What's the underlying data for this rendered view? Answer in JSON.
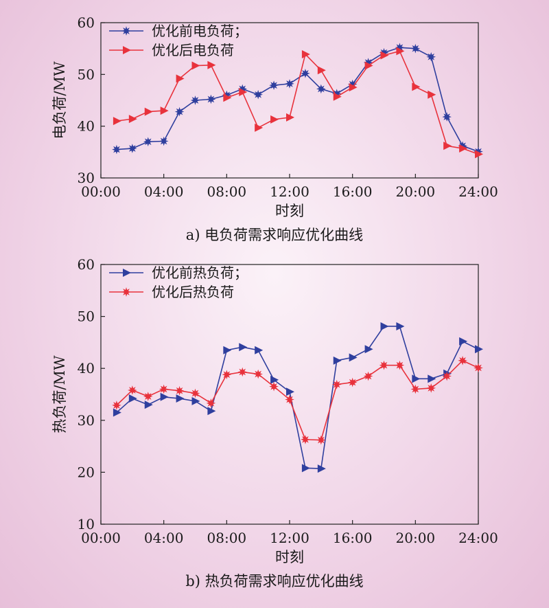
{
  "chart_data": [
    {
      "type": "line",
      "caption": "a) 电负荷需求响应优化曲线",
      "xlabel": "时刻",
      "ylabel": "电负荷/MW",
      "xlim": [
        0,
        24
      ],
      "ylim": [
        30,
        60
      ],
      "xticks": [
        "00:00",
        "04:00",
        "08:00",
        "12:00",
        "16:00",
        "20:00",
        "24:00"
      ],
      "yticks": [
        "30",
        "40",
        "50",
        "60"
      ],
      "grid": false,
      "legend_position": "top-left",
      "x": [
        1,
        2,
        3,
        4,
        5,
        6,
        7,
        8,
        9,
        10,
        11,
        12,
        13,
        14,
        15,
        16,
        17,
        18,
        19,
        20,
        21,
        22,
        23,
        24
      ],
      "series": [
        {
          "name": "优化前电负荷；",
          "color": "#2f3f9e",
          "marker": "star",
          "values": [
            35.5,
            35.7,
            37.0,
            37.1,
            42.8,
            45.0,
            45.2,
            46.0,
            47.2,
            46.1,
            47.9,
            48.2,
            50.2,
            47.2,
            46.3,
            48.1,
            52.3,
            54.2,
            55.2,
            55.0,
            53.4,
            41.8,
            36.2,
            35.1
          ]
        },
        {
          "name": "优化后电负荷",
          "color": "#e8323c",
          "marker": "triangle-right",
          "values": [
            41.0,
            41.4,
            42.8,
            43.0,
            49.2,
            51.7,
            51.8,
            45.5,
            46.6,
            39.7,
            41.3,
            41.7,
            53.9,
            50.8,
            45.7,
            47.5,
            51.7,
            53.7,
            54.5,
            47.6,
            46.1,
            36.2,
            35.7,
            34.6
          ]
        }
      ]
    },
    {
      "type": "line",
      "caption": "b) 热负荷需求响应优化曲线",
      "xlabel": "时刻",
      "ylabel": "热负荷/MW",
      "xlim": [
        0,
        24
      ],
      "ylim": [
        10,
        60
      ],
      "xticks": [
        "00:00",
        "04:00",
        "08:00",
        "12:00",
        "16:00",
        "20:00",
        "24:00"
      ],
      "yticks": [
        "10",
        "20",
        "30",
        "40",
        "50",
        "60"
      ],
      "grid": false,
      "legend_position": "top-left",
      "x": [
        1,
        2,
        3,
        4,
        5,
        6,
        7,
        8,
        9,
        10,
        11,
        12,
        13,
        14,
        15,
        16,
        17,
        18,
        19,
        20,
        21,
        22,
        23,
        24
      ],
      "series": [
        {
          "name": "优化前热负荷；",
          "color": "#2f3f9e",
          "marker": "triangle-right",
          "values": [
            31.5,
            34.2,
            33.0,
            34.5,
            34.2,
            33.7,
            31.8,
            43.5,
            44.1,
            43.5,
            37.8,
            35.5,
            20.8,
            20.7,
            41.5,
            42.1,
            43.7,
            48.1,
            48.1,
            38.0,
            38.0,
            39.0,
            45.2,
            43.7
          ]
        },
        {
          "name": "优化后热负荷",
          "color": "#e8323c",
          "marker": "star",
          "values": [
            32.9,
            35.8,
            34.6,
            36.0,
            35.7,
            35.2,
            33.3,
            38.8,
            39.3,
            38.9,
            36.5,
            34.0,
            26.3,
            26.2,
            36.9,
            37.3,
            38.5,
            40.6,
            40.6,
            36.0,
            36.2,
            38.5,
            41.5,
            40.1
          ]
        }
      ]
    }
  ]
}
